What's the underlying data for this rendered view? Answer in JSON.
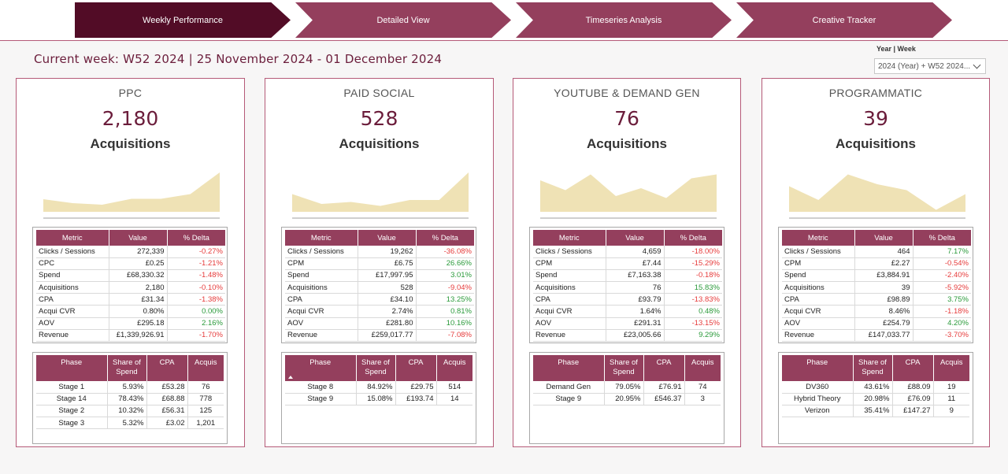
{
  "nav": {
    "tabs": [
      {
        "label": "Weekly Performance"
      },
      {
        "label": "Detailed View"
      },
      {
        "label": "Timeseries Analysis"
      },
      {
        "label": "Creative Tracker"
      }
    ]
  },
  "header": {
    "current_week": "Current week: W52 2024 | 25 November 2024 - 01 December 2024"
  },
  "filter": {
    "label": "Year | Week",
    "value": "2024 (Year) + W52 2024..."
  },
  "colors": {
    "accent": "#943f5d",
    "active_tab": "#520c26",
    "value": "#6b1d3b",
    "spark_fill": "#efe2b5",
    "negative": "#e63b3b",
    "positive": "#2a9a3a"
  },
  "metric_headers": [
    "Metric",
    "Value",
    "% Delta"
  ],
  "phase_headers": [
    "Phase",
    "Share of Spend",
    "CPA",
    "Acquis"
  ],
  "cards": [
    {
      "title": "PPC",
      "value": "2,180",
      "label": "Acquisitions",
      "spark": [
        0.32,
        0.22,
        0.18,
        0.33,
        0.33,
        0.45,
        1.0
      ],
      "metrics": [
        {
          "metric": "Clicks / Sessions",
          "value": "272,339",
          "delta": "-0.27%"
        },
        {
          "metric": "CPC",
          "value": "£0.25",
          "delta": "-1.21%"
        },
        {
          "metric": "Spend",
          "value": "£68,330.32",
          "delta": "-1.48%"
        },
        {
          "metric": "Acquisitions",
          "value": "2,180",
          "delta": "-0.10%"
        },
        {
          "metric": "CPA",
          "value": "£31.34",
          "delta": "-1.38%"
        },
        {
          "metric": "Acqui CVR",
          "value": "0.80%",
          "delta": "0.00%"
        },
        {
          "metric": "AOV",
          "value": "£295.18",
          "delta": "2.16%"
        },
        {
          "metric": "Revenue",
          "value": "£1,339,926.91",
          "delta": "-1.70%"
        }
      ],
      "phases": [
        {
          "phase": "Stage 1",
          "share": "5.93%",
          "cpa": "£53.28",
          "acquis": "76"
        },
        {
          "phase": "Stage 14",
          "share": "78.43%",
          "cpa": "£68.88",
          "acquis": "778"
        },
        {
          "phase": "Stage 2",
          "share": "10.32%",
          "cpa": "£56.31",
          "acquis": "125"
        },
        {
          "phase": "Stage 3",
          "share": "5.32%",
          "cpa": "£3.02",
          "acquis": "1,201"
        }
      ]
    },
    {
      "title": "PAID SOCIAL",
      "value": "528",
      "label": "Acquisitions",
      "spark": [
        0.45,
        0.2,
        0.25,
        0.15,
        0.3,
        0.3,
        1.0
      ],
      "metrics": [
        {
          "metric": "Clicks / Sessions",
          "value": "19,262",
          "delta": "-36.08%"
        },
        {
          "metric": "CPM",
          "value": "£6.75",
          "delta": "26.66%"
        },
        {
          "metric": "Spend",
          "value": "£17,997.95",
          "delta": "3.01%"
        },
        {
          "metric": "Acquisitions",
          "value": "528",
          "delta": "-9.04%"
        },
        {
          "metric": "CPA",
          "value": "£34.10",
          "delta": "13.25%"
        },
        {
          "metric": "Acqui CVR",
          "value": "2.74%",
          "delta": "0.81%"
        },
        {
          "metric": "AOV",
          "value": "£281.80",
          "delta": "10.16%"
        },
        {
          "metric": "Revenue",
          "value": "£259,017.77",
          "delta": "-7.08%"
        }
      ],
      "phases": [
        {
          "phase": "Stage 8",
          "share": "84.92%",
          "cpa": "£29.75",
          "acquis": "514"
        },
        {
          "phase": "Stage 9",
          "share": "15.08%",
          "cpa": "£193.74",
          "acquis": "14"
        }
      ]
    },
    {
      "title": "YOUTUBE & DEMAND GEN",
      "value": "76",
      "label": "Acquisitions",
      "spark": [
        0.8,
        0.55,
        0.95,
        0.4,
        0.6,
        0.35,
        0.85,
        0.95
      ],
      "metrics": [
        {
          "metric": "Clicks / Sessions",
          "value": "4,659",
          "delta": "-18.00%"
        },
        {
          "metric": "CPM",
          "value": "£7.44",
          "delta": "-15.29%"
        },
        {
          "metric": "Spend",
          "value": "£7,163.38",
          "delta": "-0.18%"
        },
        {
          "metric": "Acquisitions",
          "value": "76",
          "delta": "15.83%"
        },
        {
          "metric": "CPA",
          "value": "£93.79",
          "delta": "-13.83%"
        },
        {
          "metric": "Acqui CVR",
          "value": "1.64%",
          "delta": "0.48%"
        },
        {
          "metric": "AOV",
          "value": "£291.31",
          "delta": "-13.15%"
        },
        {
          "metric": "Revenue",
          "value": "£23,005.66",
          "delta": "9.29%"
        }
      ],
      "phases": [
        {
          "phase": "Demand Gen",
          "share": "79.05%",
          "cpa": "£76.91",
          "acquis": "74"
        },
        {
          "phase": "Stage 9",
          "share": "20.95%",
          "cpa": "£546.37",
          "acquis": "3"
        }
      ]
    },
    {
      "title": "PROGRAMMATIC",
      "value": "39",
      "label": "Acquisitions",
      "spark": [
        0.65,
        0.3,
        0.95,
        0.7,
        0.55,
        0.05,
        0.45
      ],
      "metrics": [
        {
          "metric": "Clicks / Sessions",
          "value": "464",
          "delta": "7.17%"
        },
        {
          "metric": "CPM",
          "value": "£2.27",
          "delta": "-0.54%"
        },
        {
          "metric": "Spend",
          "value": "£3,884.91",
          "delta": "-2.40%"
        },
        {
          "metric": "Acquisitions",
          "value": "39",
          "delta": "-5.92%"
        },
        {
          "metric": "CPA",
          "value": "£98.89",
          "delta": "3.75%"
        },
        {
          "metric": "Acqui CVR",
          "value": "8.46%",
          "delta": "-1.18%"
        },
        {
          "metric": "AOV",
          "value": "£254.79",
          "delta": "4.20%"
        },
        {
          "metric": "Revenue",
          "value": "£147,033.77",
          "delta": "-3.70%"
        }
      ],
      "phases": [
        {
          "phase": "DV360",
          "share": "43.61%",
          "cpa": "£88.09",
          "acquis": "19"
        },
        {
          "phase": "Hybrid Theory",
          "share": "20.98%",
          "cpa": "£76.09",
          "acquis": "11"
        },
        {
          "phase": "Verizon",
          "share": "35.41%",
          "cpa": "£147.27",
          "acquis": "9"
        }
      ]
    }
  ]
}
